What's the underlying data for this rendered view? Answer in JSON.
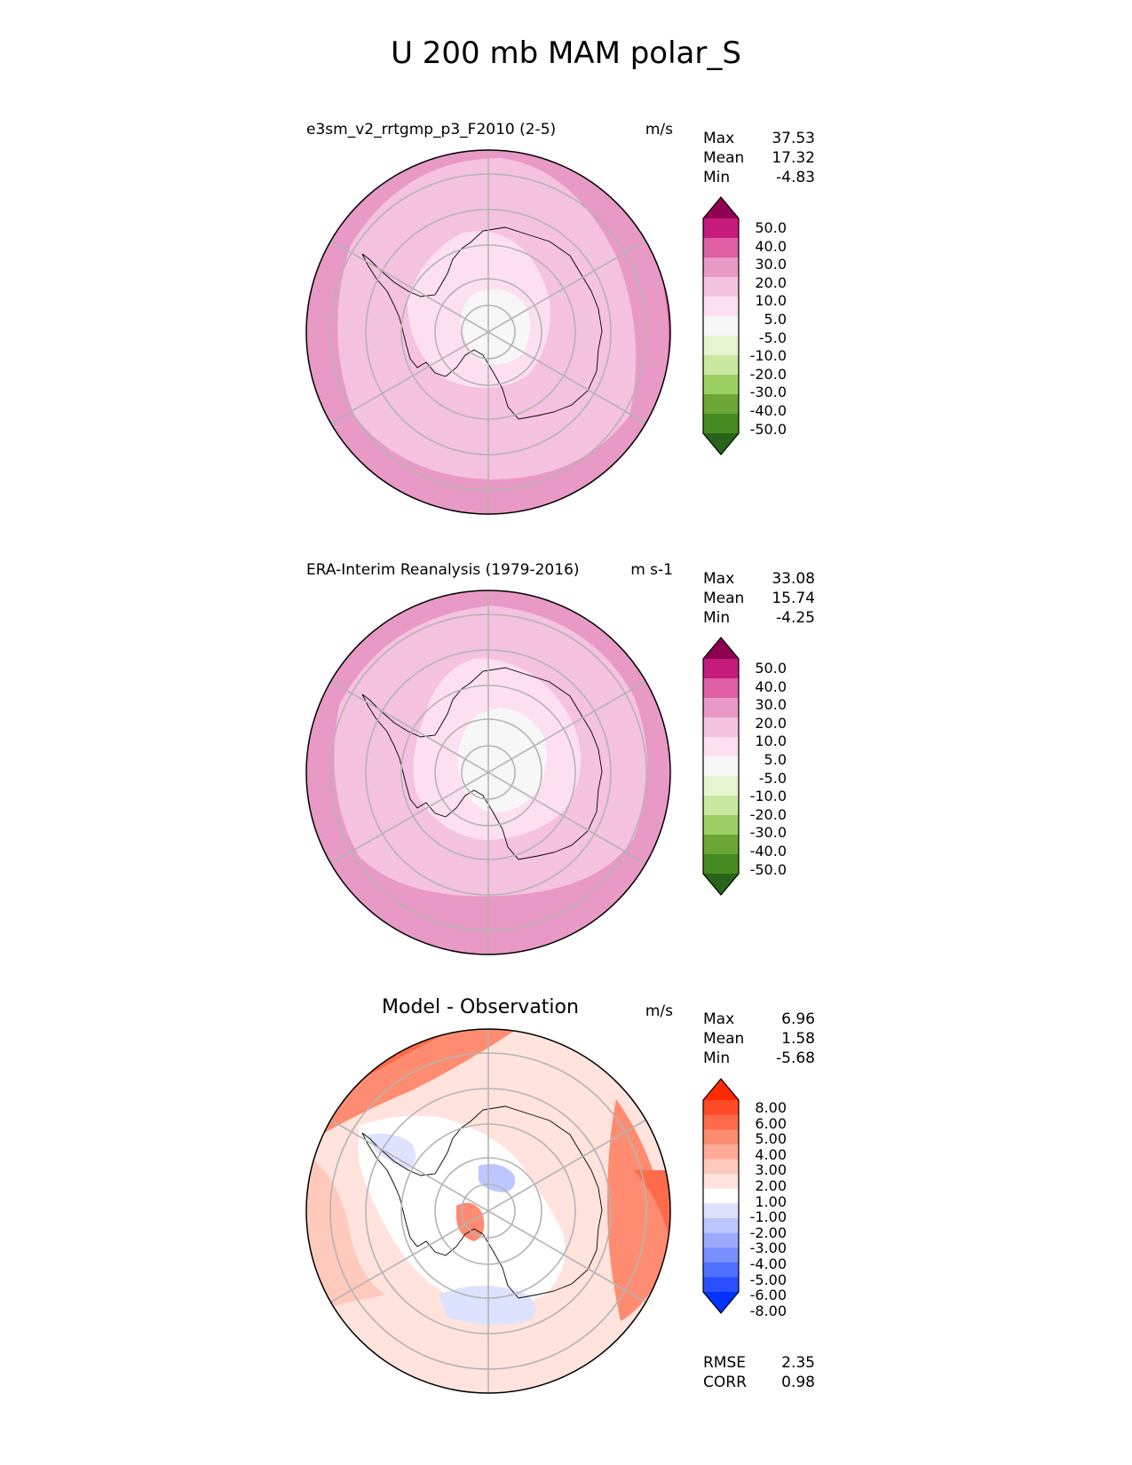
{
  "figure": {
    "title": "U 200 mb MAM polar_S"
  },
  "panels": [
    {
      "id": "test",
      "title": "e3sm_v2_rrtgmp_p3_F2010 (2-5)",
      "units": "m/s",
      "stats": [
        {
          "label": "Max",
          "value": "37.53"
        },
        {
          "label": "Mean",
          "value": "17.32"
        },
        {
          "label": "Min",
          "value": "-4.83"
        }
      ],
      "colorbar_ticks": [
        "50.0",
        "40.0",
        "30.0",
        "20.0",
        "10.0",
        "5.0",
        "-5.0",
        "-10.0",
        "-20.0",
        "-30.0",
        "-40.0",
        "-50.0"
      ]
    },
    {
      "id": "reference",
      "title": "ERA-Interim Reanalysis (1979-2016)",
      "units": "m s-1",
      "stats": [
        {
          "label": "Max",
          "value": "33.08"
        },
        {
          "label": "Mean",
          "value": "15.74"
        },
        {
          "label": "Min",
          "value": "-4.25"
        }
      ],
      "colorbar_ticks": [
        "50.0",
        "40.0",
        "30.0",
        "20.0",
        "10.0",
        "5.0",
        "-5.0",
        "-10.0",
        "-20.0",
        "-30.0",
        "-40.0",
        "-50.0"
      ]
    },
    {
      "id": "difference",
      "title": "Model - Observation",
      "units": "m/s",
      "stats": [
        {
          "label": "Max",
          "value": "6.96"
        },
        {
          "label": "Mean",
          "value": "1.58"
        },
        {
          "label": "Min",
          "value": "-5.68"
        }
      ],
      "colorbar_ticks": [
        "8.00",
        "6.00",
        "5.00",
        "4.00",
        "3.00",
        "2.00",
        "1.00",
        "-1.00",
        "-2.00",
        "-3.00",
        "-4.00",
        "-5.00",
        "-6.00",
        "-8.00"
      ],
      "metrics": [
        {
          "label": "RMSE",
          "value": "2.35"
        },
        {
          "label": "CORR",
          "value": "0.98"
        }
      ]
    }
  ],
  "colors": {
    "wind_scale": [
      "#8e0152",
      "#c51b7d",
      "#de5fa3",
      "#e899c5",
      "#f5c2df",
      "#fde0ef",
      "#f7f7f7",
      "#e6f5d0",
      "#c9e8a2",
      "#9bcf63",
      "#6ca735",
      "#468b22",
      "#276419"
    ],
    "diff_scale": [
      "#ff2a00",
      "#ff4a26",
      "#ff6a4a",
      "#ff8c70",
      "#ffab96",
      "#ffc9bb",
      "#ffe3dc",
      "#ffffff",
      "#dde2ff",
      "#bcc7ff",
      "#9aabff",
      "#7a8fff",
      "#5070ff",
      "#2a4fff",
      "#0033ff"
    ]
  }
}
